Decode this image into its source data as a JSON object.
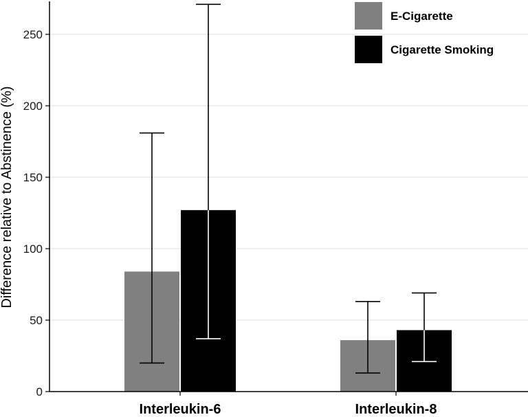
{
  "chart_data": {
    "type": "bar",
    "title": "",
    "xlabel": "",
    "ylabel": "Difference relative to Abstinence (%)",
    "categories": [
      "Interleukin-6",
      "Interleukin-8"
    ],
    "series": [
      {
        "name": "E-Cigarette",
        "color": "#808080",
        "values": [
          84,
          36
        ],
        "error_low": [
          20,
          13
        ],
        "error_high": [
          181,
          63
        ]
      },
      {
        "name": "Cigarette Smoking",
        "color": "#000000",
        "values": [
          127,
          43
        ],
        "error_low": [
          37,
          21
        ],
        "error_high": [
          271,
          69
        ]
      }
    ],
    "ylim": [
      0,
      275
    ],
    "yticks": [
      0,
      50,
      100,
      150,
      200,
      250
    ],
    "grid": true,
    "legend_position": "top-right"
  }
}
